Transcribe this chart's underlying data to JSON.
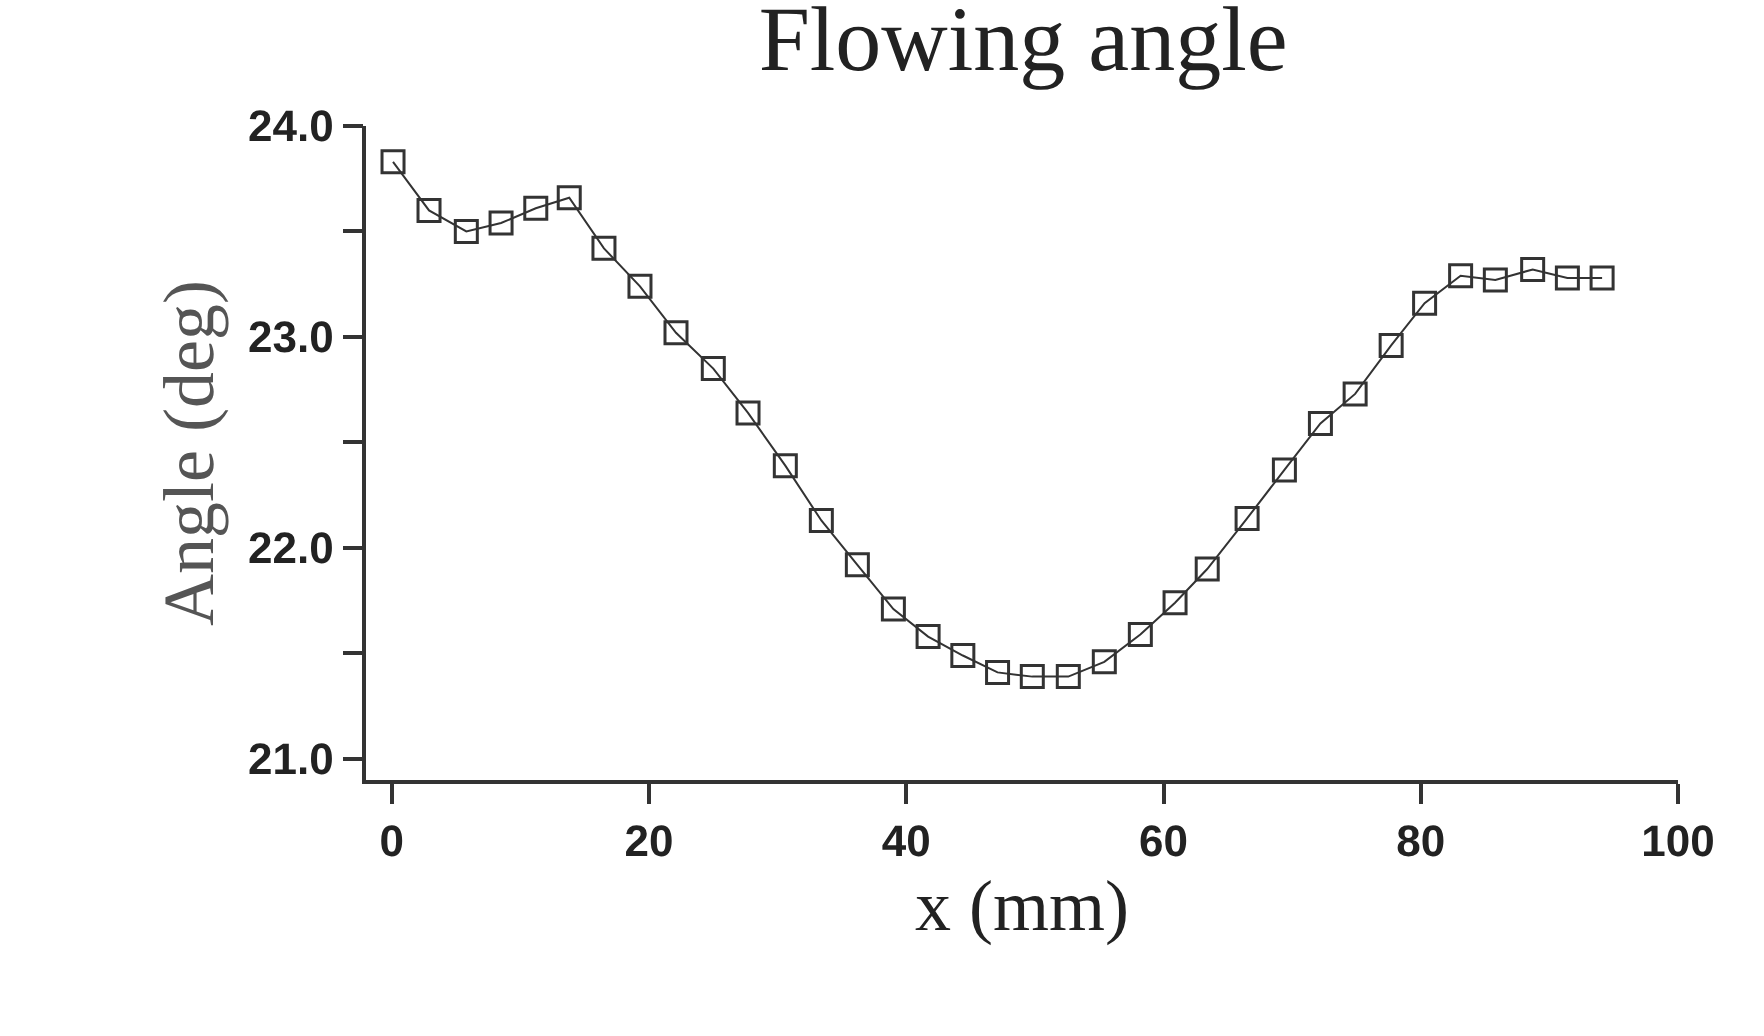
{
  "chart_data": {
    "type": "line",
    "title": "Flowing angle",
    "xlabel": "x (mm)",
    "ylabel": "Angle (deg)",
    "xlim": [
      -2,
      100
    ],
    "xticks": [
      0,
      20,
      40,
      60,
      80,
      100
    ],
    "ylim": [
      20.9,
      24.0
    ],
    "yticks": [
      {
        "value": 21,
        "label": "21.0"
      },
      {
        "value": 21.5,
        "label": null
      },
      {
        "value": 22,
        "label": "22.0"
      },
      {
        "value": 22.5,
        "label": null
      },
      {
        "value": 23,
        "label": "23.0"
      },
      {
        "value": 23.5,
        "label": null
      },
      {
        "value": 24,
        "label": "24.0"
      }
    ],
    "legend": false,
    "marker": "square",
    "line_style": "solid",
    "series": [
      {
        "color": "#333333",
        "x": [
          0.1,
          2.9,
          5.8,
          8.5,
          11.2,
          13.8,
          16.5,
          19.3,
          22.1,
          25.0,
          27.7,
          30.6,
          33.4,
          36.2,
          39.0,
          41.7,
          44.4,
          47.1,
          49.8,
          52.6,
          55.4,
          58.2,
          60.9,
          63.4,
          66.5,
          69.4,
          72.2,
          74.9,
          77.7,
          80.3,
          83.1,
          85.8,
          88.7,
          91.4,
          94.1
        ],
        "values": [
          23.83,
          23.6,
          23.5,
          23.54,
          23.61,
          23.66,
          23.42,
          23.24,
          23.02,
          22.85,
          22.64,
          22.39,
          22.13,
          21.92,
          21.71,
          21.58,
          21.49,
          21.41,
          21.39,
          21.39,
          21.46,
          21.59,
          21.74,
          21.9,
          22.14,
          22.37,
          22.59,
          22.73,
          22.96,
          23.16,
          23.29,
          23.27,
          23.32,
          23.28,
          23.28
        ]
      }
    ]
  }
}
